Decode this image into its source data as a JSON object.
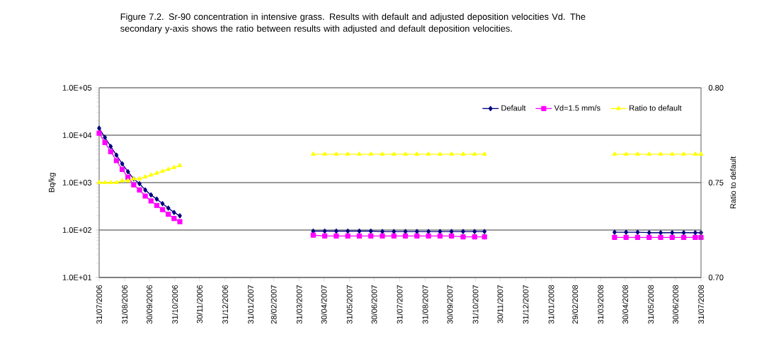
{
  "chart_data": {
    "type": "line",
    "title": "Figure 7.2. Sr-90 concentration in intensive grass. Results with default and adjusted deposition velocities Vd. The secondary y-axis shows the ratio between results with adjusted and default deposition velocities.",
    "ylabel": "Bq/kg",
    "y2label": "Ratio to default",
    "x": [
      "2006-07-31",
      "2006-08-07",
      "2006-08-14",
      "2006-08-21",
      "2006-08-28",
      "2006-09-04",
      "2006-09-11",
      "2006-09-18",
      "2006-09-25",
      "2006-10-02",
      "2006-10-09",
      "2006-10-16",
      "2006-10-23",
      "2006-10-30",
      "2006-11-06",
      "2007-01-15",
      "2007-04-17",
      "2007-05-01",
      "2007-05-15",
      "2007-05-29",
      "2007-06-12",
      "2007-06-26",
      "2007-07-10",
      "2007-07-24",
      "2007-08-07",
      "2007-08-21",
      "2007-09-04",
      "2007-09-18",
      "2007-10-02",
      "2007-10-16",
      "2007-10-30",
      "2007-11-11",
      "2008-01-15",
      "2008-04-17",
      "2008-05-01",
      "2008-05-15",
      "2008-05-29",
      "2008-06-12",
      "2008-06-26",
      "2008-07-10",
      "2008-07-24",
      "2008-07-31"
    ],
    "series": [
      {
        "name": "Default",
        "color": "#000080",
        "marker": "diamond",
        "values": [
          14000,
          9000,
          5800,
          3800,
          2500,
          1700,
          1200,
          950,
          700,
          550,
          450,
          360,
          290,
          235,
          200,
          null,
          95,
          95,
          95,
          95,
          95,
          95,
          93,
          93,
          93,
          93,
          93,
          93,
          93,
          93,
          93,
          93,
          null,
          90,
          90,
          90,
          88,
          88,
          88,
          88,
          88,
          88
        ]
      },
      {
        "name": "Vd=1.5 mm/s",
        "color": "#ff00ff",
        "marker": "square",
        "values": [
          11000,
          7000,
          4500,
          2900,
          1900,
          1300,
          900,
          700,
          520,
          410,
          330,
          270,
          215,
          175,
          150,
          null,
          78,
          75,
          75,
          75,
          75,
          75,
          75,
          75,
          75,
          75,
          75,
          75,
          75,
          72,
          72,
          72,
          null,
          70,
          70,
          70,
          70,
          70,
          70,
          70,
          70,
          70
        ]
      },
      {
        "name": "Ratio to default",
        "color": "#ffff00",
        "marker": "triangle",
        "axis": "y2",
        "values": [
          0.75,
          0.75,
          0.75,
          0.75,
          0.751,
          0.751,
          0.752,
          0.752,
          0.753,
          0.754,
          0.755,
          0.756,
          0.757,
          0.758,
          0.759,
          null,
          0.765,
          0.765,
          0.765,
          0.765,
          0.765,
          0.765,
          0.765,
          0.765,
          0.765,
          0.765,
          0.765,
          0.765,
          0.765,
          0.765,
          0.765,
          0.765,
          null,
          0.765,
          0.765,
          0.765,
          0.765,
          0.765,
          0.765,
          0.765,
          0.765,
          0.765
        ]
      }
    ],
    "xlim": [
      "2006-07-31",
      "2008-07-31"
    ],
    "xticks": [
      {
        "value": "2006-07-31",
        "label": "31/07/2006"
      },
      {
        "value": "2006-08-31",
        "label": "31/08/2006"
      },
      {
        "value": "2006-09-30",
        "label": "30/09/2006"
      },
      {
        "value": "2006-10-31",
        "label": "31/10/2006"
      },
      {
        "value": "2006-11-30",
        "label": "30/11/2006"
      },
      {
        "value": "2006-12-31",
        "label": "31/12/2006"
      },
      {
        "value": "2007-01-31",
        "label": "31/01/2007"
      },
      {
        "value": "2007-02-28",
        "label": "28/02/2007"
      },
      {
        "value": "2007-03-31",
        "label": "31/03/2007"
      },
      {
        "value": "2007-04-30",
        "label": "30/04/2007"
      },
      {
        "value": "2007-05-31",
        "label": "31/05/2007"
      },
      {
        "value": "2007-06-30",
        "label": "30/06/2007"
      },
      {
        "value": "2007-07-31",
        "label": "31/07/2007"
      },
      {
        "value": "2007-08-31",
        "label": "31/08/2007"
      },
      {
        "value": "2007-09-30",
        "label": "30/09/2007"
      },
      {
        "value": "2007-10-31",
        "label": "31/10/2007"
      },
      {
        "value": "2007-11-30",
        "label": "30/11/2007"
      },
      {
        "value": "2007-12-31",
        "label": "31/12/2007"
      },
      {
        "value": "2008-01-31",
        "label": "31/01/2008"
      },
      {
        "value": "2008-02-29",
        "label": "29/02/2008"
      },
      {
        "value": "2008-03-31",
        "label": "31/03/2008"
      },
      {
        "value": "2008-04-30",
        "label": "30/04/2008"
      },
      {
        "value": "2008-05-31",
        "label": "31/05/2008"
      },
      {
        "value": "2008-06-30",
        "label": "30/06/2008"
      },
      {
        "value": "2008-07-31",
        "label": "31/07/2008"
      }
    ],
    "ylim": [
      10,
      100000
    ],
    "yticks": [
      {
        "value": 10,
        "label": "1.0E+01"
      },
      {
        "value": 100,
        "label": "1.0E+02"
      },
      {
        "value": 1000,
        "label": "1.0E+03"
      },
      {
        "value": 10000,
        "label": "1.0E+04"
      },
      {
        "value": 100000,
        "label": "1.0E+05"
      }
    ],
    "y2lim": [
      0.7,
      0.8
    ],
    "y2ticks": [
      {
        "value": 0.7,
        "label": "0.70"
      },
      {
        "value": 0.75,
        "label": "0.75"
      },
      {
        "value": 0.8,
        "label": "0.80"
      }
    ],
    "log": "y",
    "grid": "y",
    "legend": "top right",
    "line_style": "solid"
  }
}
